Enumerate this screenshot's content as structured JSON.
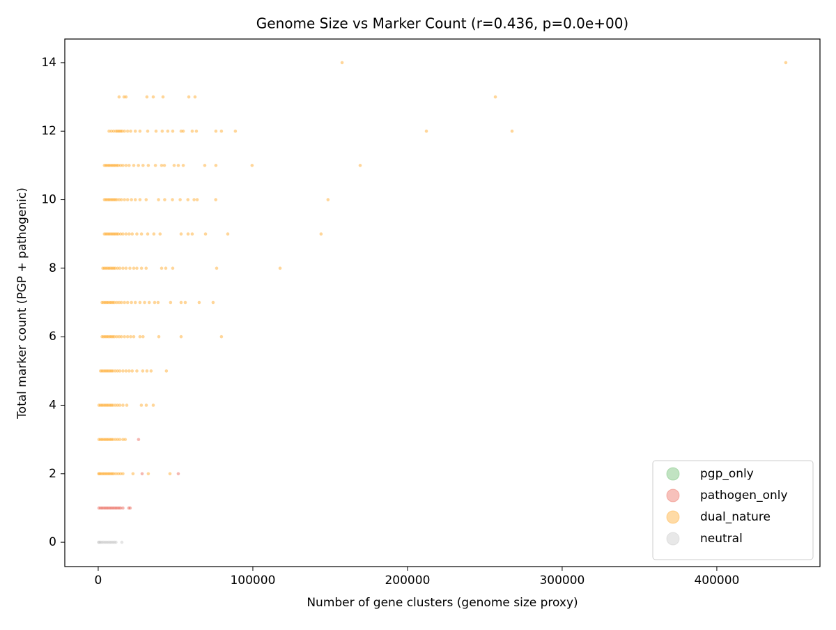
{
  "chart_data": {
    "type": "scatter",
    "title": "Genome Size vs Marker Count (r=0.436, p=0.0e+00)",
    "xlabel": "Number of gene clusters (genome size proxy)",
    "ylabel": "Total marker count (PGP + pathogenic)",
    "xlim": [
      -21600,
      466700
    ],
    "ylim": [
      -0.71,
      14.69
    ],
    "xticks": [
      0,
      100000,
      200000,
      300000,
      400000
    ],
    "yticks": [
      0,
      2,
      4,
      6,
      8,
      10,
      12,
      14
    ],
    "legend": "lower right",
    "series": [
      {
        "name": "pgp_only",
        "color": "#4caf50",
        "x": [],
        "y": []
      },
      {
        "name": "pathogen_only",
        "color": "#e74c3c",
        "x": [
          500,
          1500,
          2500,
          3500,
          4500,
          5500,
          6500,
          7500,
          8500,
          9500,
          10500,
          11500,
          12500,
          13500,
          14500,
          16000,
          19800,
          20700,
          28400,
          51800,
          26100
        ],
        "y": [
          1,
          1,
          1,
          1,
          1,
          1,
          1,
          1,
          1,
          1,
          1,
          1,
          1,
          1,
          1,
          1,
          1,
          1,
          2,
          2,
          3
        ]
      },
      {
        "name": "dual_nature",
        "color": "#ff9800",
        "x": [
          157700,
          444600,
          13500,
          16700,
          18000,
          31500,
          35600,
          41900,
          58600,
          62600,
          256800,
          7000,
          8500,
          10000,
          11500,
          12500,
          13500,
          14500,
          15500,
          17000,
          19000,
          21000,
          24000,
          27000,
          32000,
          37400,
          41400,
          45000,
          48200,
          53600,
          55000,
          60800,
          63500,
          76100,
          79700,
          88700,
          212200,
          267600,
          4000,
          5000,
          6000,
          7000,
          8000,
          9000,
          10000,
          11000,
          12000,
          13000,
          14500,
          16000,
          18000,
          20000,
          23000,
          26000,
          29000,
          32400,
          37000,
          41000,
          42800,
          49100,
          51800,
          55000,
          68900,
          76100,
          99500,
          169400,
          4000,
          5000,
          6000,
          7000,
          8000,
          9000,
          10000,
          11000,
          12000,
          13500,
          15000,
          17000,
          19000,
          21500,
          24000,
          27000,
          31000,
          39000,
          43000,
          48000,
          53000,
          58000,
          62000,
          64000,
          76000,
          148600,
          4000,
          5000,
          6000,
          7000,
          8000,
          9000,
          10000,
          11000,
          12000,
          13000,
          14500,
          16000,
          18000,
          20000,
          22000,
          25000,
          28000,
          32000,
          36000,
          40000,
          53600,
          58100,
          60800,
          69400,
          83800,
          144100,
          3000,
          4000,
          5000,
          6000,
          7000,
          8000,
          9000,
          10000,
          11000,
          12500,
          14000,
          16000,
          18000,
          20500,
          23000,
          25000,
          28000,
          31000,
          41000,
          43700,
          48200,
          76600,
          117600,
          2500,
          3500,
          4500,
          5500,
          6500,
          7500,
          8500,
          9500,
          10500,
          12000,
          13500,
          15000,
          17000,
          19000,
          21500,
          24000,
          27000,
          30000,
          33000,
          36500,
          38700,
          46800,
          53600,
          56300,
          65300,
          74300,
          2500,
          3500,
          4500,
          5500,
          6500,
          7500,
          8500,
          9500,
          10500,
          12000,
          13500,
          15000,
          17000,
          19000,
          21000,
          23000,
          27000,
          29000,
          39200,
          53600,
          79700,
          1500,
          2500,
          3500,
          4500,
          5500,
          6500,
          7500,
          8500,
          9500,
          11000,
          12500,
          14000,
          16000,
          18000,
          20000,
          22000,
          25000,
          28800,
          31500,
          34200,
          44100,
          500,
          1500,
          2500,
          3500,
          4500,
          5500,
          6500,
          7500,
          8500,
          9500,
          11000,
          12500,
          14000,
          16000,
          18500,
          27900,
          31100,
          35600,
          500,
          1500,
          2500,
          3500,
          4500,
          5500,
          6500,
          7500,
          8500,
          9500,
          11000,
          12500,
          14000,
          16000,
          17500,
          300,
          1000,
          2000,
          3000,
          4000,
          5000,
          6000,
          7000,
          8000,
          9000,
          10000,
          11500,
          13000,
          14500,
          16000,
          22500,
          32400,
          46400
        ],
        "y": [
          14,
          14,
          13,
          13,
          13,
          13,
          13,
          13,
          13,
          13,
          13,
          12,
          12,
          12,
          12,
          12,
          12,
          12,
          12,
          12,
          12,
          12,
          12,
          12,
          12,
          12,
          12,
          12,
          12,
          12,
          12,
          12,
          12,
          12,
          12,
          12,
          12,
          12,
          11,
          11,
          11,
          11,
          11,
          11,
          11,
          11,
          11,
          11,
          11,
          11,
          11,
          11,
          11,
          11,
          11,
          11,
          11,
          11,
          11,
          11,
          11,
          11,
          11,
          11,
          11,
          11,
          10,
          10,
          10,
          10,
          10,
          10,
          10,
          10,
          10,
          10,
          10,
          10,
          10,
          10,
          10,
          10,
          10,
          10,
          10,
          10,
          10,
          10,
          10,
          10,
          10,
          10,
          9,
          9,
          9,
          9,
          9,
          9,
          9,
          9,
          9,
          9,
          9,
          9,
          9,
          9,
          9,
          9,
          9,
          9,
          9,
          9,
          9,
          9,
          9,
          9,
          9,
          9,
          8,
          8,
          8,
          8,
          8,
          8,
          8,
          8,
          8,
          8,
          8,
          8,
          8,
          8,
          8,
          8,
          8,
          8,
          8,
          8,
          8,
          8,
          8,
          7,
          7,
          7,
          7,
          7,
          7,
          7,
          7,
          7,
          7,
          7,
          7,
          7,
          7,
          7,
          7,
          7,
          7,
          7,
          7,
          7,
          7,
          7,
          7,
          7,
          7,
          6,
          6,
          6,
          6,
          6,
          6,
          6,
          6,
          6,
          6,
          6,
          6,
          6,
          6,
          6,
          6,
          6,
          6,
          6,
          6,
          6,
          5,
          5,
          5,
          5,
          5,
          5,
          5,
          5,
          5,
          5,
          5,
          5,
          5,
          5,
          5,
          5,
          5,
          5,
          5,
          5,
          5,
          4,
          4,
          4,
          4,
          4,
          4,
          4,
          4,
          4,
          4,
          4,
          4,
          4,
          4,
          4,
          4,
          4,
          4,
          3,
          3,
          3,
          3,
          3,
          3,
          3,
          3,
          3,
          3,
          3,
          3,
          3,
          3,
          3,
          2,
          2,
          2,
          2,
          2,
          2,
          2,
          2,
          2,
          2,
          2,
          2,
          2,
          2,
          2,
          2,
          2,
          2
        ]
      },
      {
        "name": "neutral",
        "color": "#bdbdbd",
        "x": [
          200,
          800,
          1500,
          2500,
          3500,
          4500,
          5500,
          6500,
          7500,
          8500,
          9500,
          10500,
          11500,
          15300
        ],
        "y": [
          0,
          0,
          0,
          0,
          0,
          0,
          0,
          0,
          0,
          0,
          0,
          0,
          0,
          0
        ]
      }
    ]
  }
}
